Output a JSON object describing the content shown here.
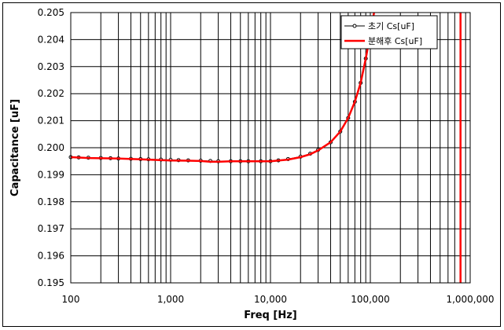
{
  "chart_data": {
    "type": "line",
    "xlabel": "Freq [Hz]",
    "ylabel": "Capacitance [uF]",
    "x_scale": "log",
    "xlim": [
      100,
      1000000
    ],
    "ylim": [
      0.195,
      0.205
    ],
    "grid": true,
    "legend_position": "top-right",
    "x_tick_labels": [
      "100",
      "1,000",
      "10,000",
      "100,000",
      "1,000,000"
    ],
    "x_ticks": [
      100,
      1000,
      10000,
      100000,
      1000000
    ],
    "y_ticks": [
      0.195,
      0.196,
      0.197,
      0.198,
      0.199,
      0.2,
      0.201,
      0.202,
      0.203,
      0.204,
      0.205
    ],
    "y_tick_labels": [
      "0.195",
      "0.196",
      "0.197",
      "0.198",
      "0.199",
      "0.200",
      "0.201",
      "0.202",
      "0.203",
      "0.204",
      "0.205"
    ],
    "series": [
      {
        "name": "초기 Cs[uF]",
        "color": "#000000",
        "marker": "circle",
        "x": [
          100,
          120,
          150,
          200,
          250,
          300,
          400,
          500,
          600,
          800,
          1000,
          1200,
          1500,
          2000,
          2500,
          3000,
          4000,
          5000,
          6000,
          8000,
          10000,
          12000,
          15000,
          20000,
          25000,
          30000,
          40000,
          50000,
          60000,
          70000,
          80000,
          90000,
          100000,
          110000
        ],
        "values": [
          0.19965,
          0.19964,
          0.19963,
          0.19962,
          0.19961,
          0.1996,
          0.19959,
          0.19958,
          0.19957,
          0.19956,
          0.19955,
          0.19954,
          0.19953,
          0.19952,
          0.19951,
          0.1995,
          0.1995,
          0.1995,
          0.1995,
          0.1995,
          0.1995,
          0.19953,
          0.19958,
          0.19967,
          0.19978,
          0.19992,
          0.2002,
          0.2006,
          0.2011,
          0.2017,
          0.2024,
          0.2033,
          0.2042,
          0.2052
        ]
      },
      {
        "name": "분해후 Cs[uF]",
        "color": "#ff0000",
        "marker": "none",
        "x": [
          100,
          150,
          200,
          300,
          500,
          700,
          1000,
          1500,
          2000,
          2500,
          3000,
          4000,
          5000,
          7000,
          10000,
          15000,
          20000,
          25000,
          30000,
          40000,
          50000,
          60000,
          70000,
          80000,
          90000,
          100000,
          110000,
          115000
        ],
        "values": [
          0.19965,
          0.19962,
          0.19961,
          0.1996,
          0.19957,
          0.19955,
          0.19953,
          0.19952,
          0.19951,
          0.19948,
          0.19948,
          0.1995,
          0.1995,
          0.1995,
          0.1995,
          0.19956,
          0.19965,
          0.19976,
          0.1999,
          0.2002,
          0.2006,
          0.2011,
          0.2017,
          0.2024,
          0.2033,
          0.2042,
          0.2051,
          0.2056
        ]
      },
      {
        "name": "",
        "color": "#ff0000",
        "marker": "none",
        "x": [
          800000,
          800000
        ],
        "values": [
          0.195,
          0.205
        ]
      }
    ]
  }
}
